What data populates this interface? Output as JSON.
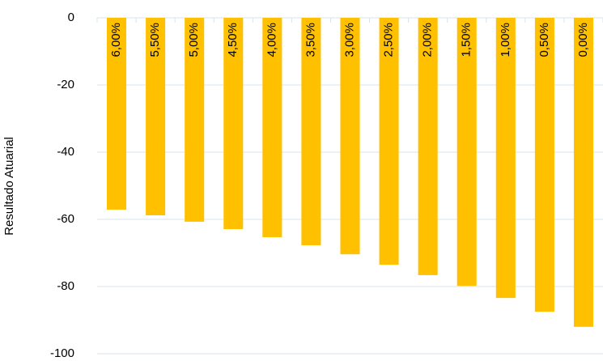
{
  "chart_data": {
    "type": "bar",
    "y_label": "Resultado Atuarial",
    "categories": [
      "6,00%",
      "5,50%",
      "5,00%",
      "4,50%",
      "4,00%",
      "3,50%",
      "3,00%",
      "2,50%",
      "2,00%",
      "1,50%",
      "1,00%",
      "0,50%",
      "0,00%"
    ],
    "values": [
      -57.1,
      -58.8,
      -60.7,
      -62.9,
      -65.3,
      -67.7,
      -70.4,
      -73.5,
      -76.6,
      -79.8,
      -83.4,
      -87.5,
      -92.0
    ],
    "color": "#ffc000",
    "ylim": [
      -100,
      0
    ],
    "yticks": [
      0,
      -20,
      -40,
      -60,
      -80,
      -100
    ],
    "grid": true
  }
}
